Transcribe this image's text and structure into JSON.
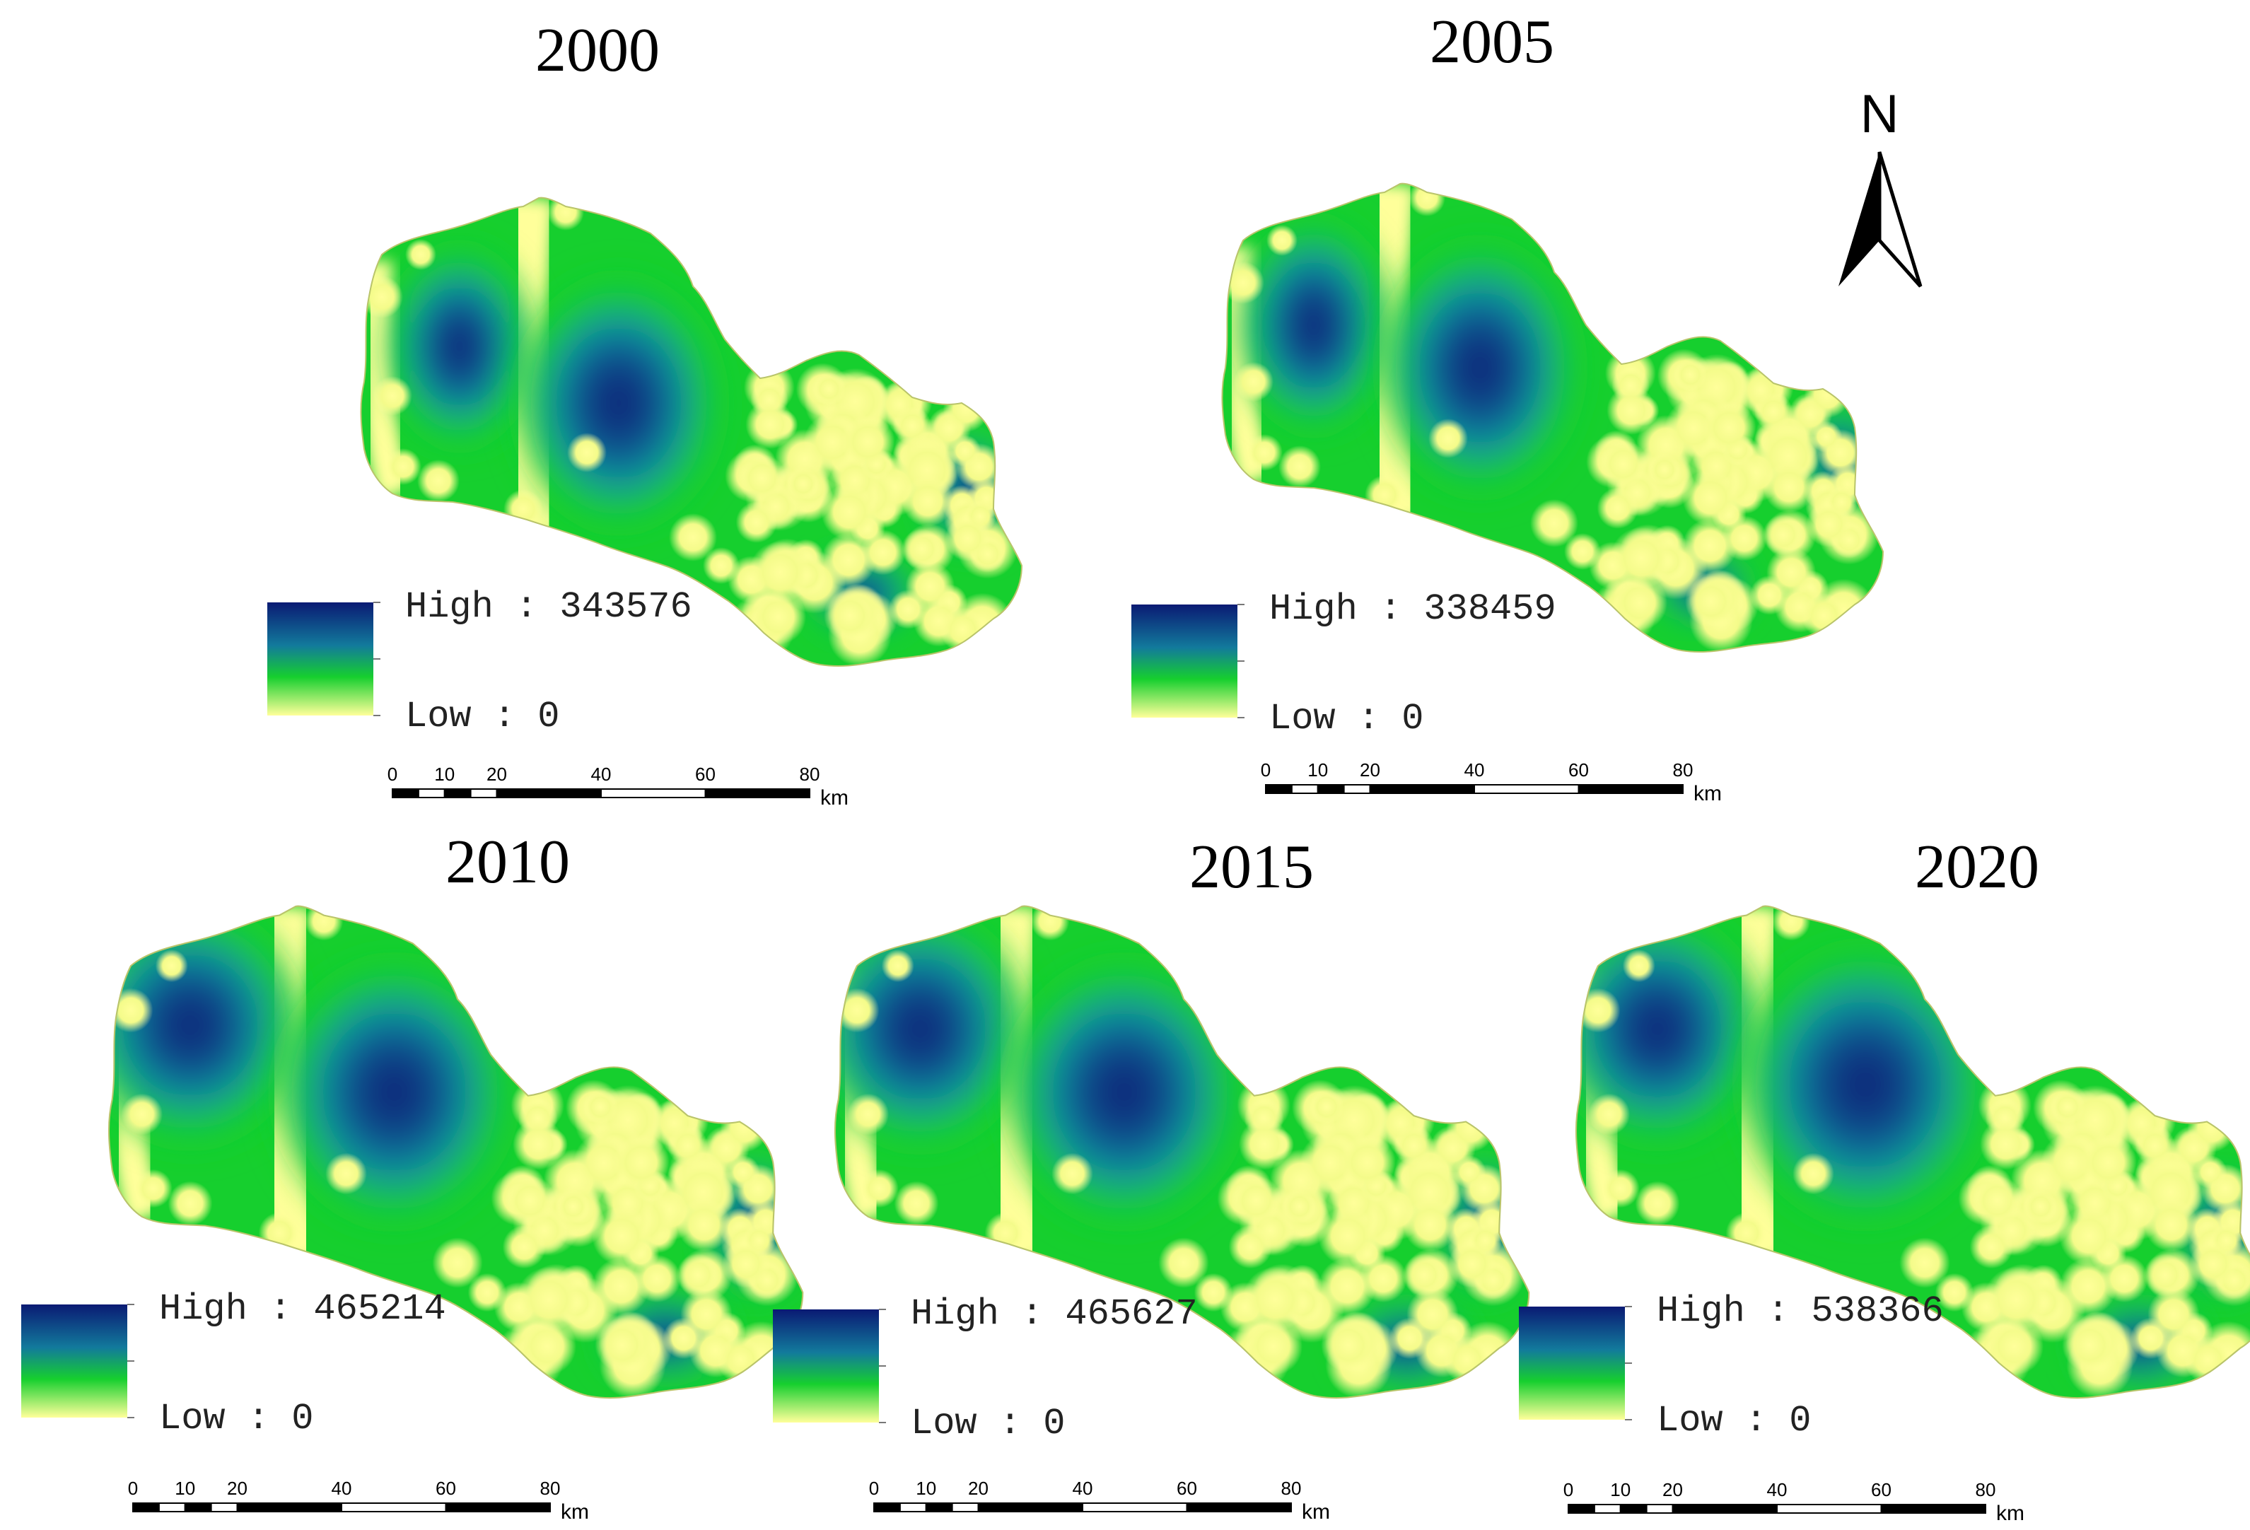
{
  "colors": {
    "ramp_high": "#0a1a73",
    "ramp_upper": "#127a9c",
    "ramp_mid": "#16cf2e",
    "ramp_low": "#ffff9a",
    "background": "#ffffff"
  },
  "north_arrow": {
    "label": "N",
    "icon": "north-arrow-icon"
  },
  "panels": [
    {
      "id": "2000",
      "title": "2000",
      "legend": {
        "high_label": "High",
        "high_value": "343576",
        "low_label": "Low",
        "low_value": "0",
        "separator": ":"
      },
      "scale": {
        "ticks": [
          "0",
          "10",
          "20",
          "40",
          "60",
          "80"
        ],
        "unit": "km"
      }
    },
    {
      "id": "2005",
      "title": "2005",
      "legend": {
        "high_label": "High",
        "high_value": "338459",
        "low_label": "Low",
        "low_value": "0",
        "separator": ":"
      },
      "scale": {
        "ticks": [
          "0",
          "10",
          "20",
          "40",
          "60",
          "80"
        ],
        "unit": "km"
      }
    },
    {
      "id": "2010",
      "title": "2010",
      "legend": {
        "high_label": "High",
        "high_value": "465214",
        "low_label": "Low",
        "low_value": "0",
        "separator": ":"
      },
      "scale": {
        "ticks": [
          "0",
          "10",
          "20",
          "40",
          "60",
          "80"
        ],
        "unit": "km"
      }
    },
    {
      "id": "2015",
      "title": "2015",
      "legend": {
        "high_label": "High",
        "high_value": "465627",
        "low_label": "Low",
        "low_value": "0",
        "separator": ":"
      },
      "scale": {
        "ticks": [
          "0",
          "10",
          "20",
          "40",
          "60",
          "80"
        ],
        "unit": "km"
      }
    },
    {
      "id": "2020",
      "title": "2020",
      "legend": {
        "high_label": "High",
        "high_value": "538366",
        "low_label": "Low",
        "low_value": "0",
        "separator": ":"
      },
      "scale": {
        "ticks": [
          "0",
          "10",
          "20",
          "40",
          "60",
          "80"
        ],
        "unit": "km"
      }
    }
  ]
}
